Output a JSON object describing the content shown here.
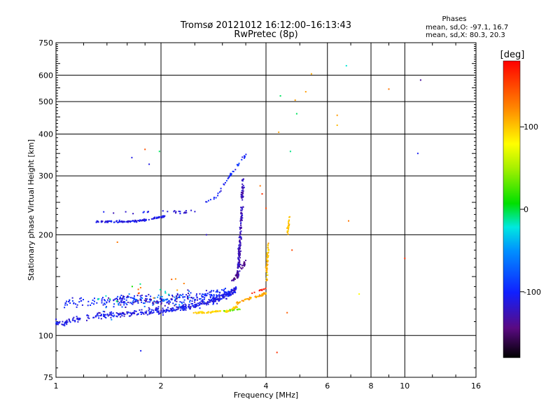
{
  "chart_data": {
    "type": "scatter",
    "title": "Tromsø 20121012 16:12:00–16:13:43",
    "subtitle": "RwPretec (8p)",
    "xlabel": "Frequency [MHz]",
    "ylabel": "Stationary phase Virtual Height [km]",
    "x_scale": "log",
    "y_scale": "log",
    "xlim": [
      1,
      16
    ],
    "ylim": [
      75,
      750
    ],
    "x_ticks": [
      1,
      2,
      4,
      6,
      8,
      10,
      16
    ],
    "x_tick_labels": [
      "1",
      "2",
      "4",
      "6",
      "8",
      "10",
      "16"
    ],
    "x_gridlines": [
      2,
      4,
      6,
      8,
      10
    ],
    "y_ticks": [
      75,
      100,
      200,
      300,
      400,
      500,
      600,
      750
    ],
    "y_tick_labels": [
      "75",
      "100",
      "200",
      "300",
      "400",
      "500",
      "600",
      "750"
    ],
    "y_gridlines": [
      100,
      200,
      300,
      400,
      500,
      600
    ],
    "grid": true,
    "colorbar": {
      "label": "[deg]",
      "range": [
        -180,
        180
      ],
      "ticks": [
        100,
        0,
        -100
      ],
      "tick_labels": [
        "100",
        "0",
        "-100"
      ]
    },
    "stats": {
      "heading": "Phases",
      "line1": "mean, sd,O: -97.1, 16.7",
      "line2": "mean, sd,X:  80.3, 20.3"
    },
    "traces": [
      {
        "x": [
          1.0,
          1.05,
          1.1,
          1.2,
          1.3,
          1.4,
          1.5,
          1.6,
          1.7,
          1.8,
          1.9,
          2.0,
          2.1,
          2.2,
          2.3,
          2.4,
          2.5,
          2.6,
          2.7,
          2.8,
          2.9,
          3.0,
          3.1,
          3.2,
          3.3
        ],
        "y": [
          110,
          109,
          111,
          113,
          114,
          115,
          115,
          116,
          117,
          117,
          118,
          118,
          119,
          120,
          121,
          122,
          123,
          124,
          126,
          127,
          128,
          130,
          132,
          135,
          138
        ],
        "phase": -110,
        "spread": [
          0.008,
          0.03
        ],
        "count": 420
      },
      {
        "x": [
          1.05,
          1.2,
          1.4,
          1.6,
          1.8,
          2.0,
          2.2,
          2.4,
          2.6,
          2.8,
          3.0,
          3.2
        ],
        "y": [
          125,
          126,
          126,
          128,
          128,
          127,
          128,
          130,
          131,
          132,
          133,
          136
        ],
        "phase": -100,
        "spread": [
          0.012,
          0.05
        ],
        "count": 260
      },
      {
        "x": [
          1.3,
          1.5,
          1.7,
          1.9,
          2.0,
          2.1,
          2.3,
          2.6
        ],
        "y": [
          117,
          122,
          130,
          125,
          133,
          127,
          126,
          128
        ],
        "phase": -60,
        "spread": [
          0.04,
          0.09
        ],
        "count": 40
      },
      {
        "x": [
          1.3,
          1.5,
          1.7,
          1.9,
          2.1,
          2.3,
          2.5
        ],
        "y": [
          117,
          125,
          128,
          124,
          126,
          132,
          131
        ],
        "phase": -135,
        "spread": [
          0.04,
          0.08
        ],
        "count": 50
      },
      {
        "x": [
          1.5,
          1.7,
          1.9,
          2.1,
          2.3
        ],
        "y": [
          131,
          135,
          127,
          140,
          142
        ],
        "phase": 130,
        "spread": [
          0.04,
          0.07
        ],
        "count": 10
      },
      {
        "x": [
          1.3,
          1.5,
          1.7,
          1.9,
          2.1
        ],
        "y": [
          132,
          128,
          140,
          138,
          135
        ],
        "phase": -10,
        "spread": [
          0.04,
          0.07
        ],
        "count": 12
      },
      {
        "x": [
          1.3,
          1.4,
          1.5,
          1.6,
          1.7,
          1.8,
          1.9,
          2.0,
          2.05
        ],
        "y": [
          219,
          219,
          219,
          219,
          220,
          221,
          224,
          226,
          227
        ],
        "phase": -110,
        "spread": [
          0.006,
          0.01
        ],
        "count": 120
      },
      {
        "x": [
          1.35,
          1.6,
          1.8,
          2.0,
          2.3,
          2.5,
          2.7
        ],
        "y": [
          234,
          233,
          233,
          237,
          233,
          236,
          246
        ],
        "phase": -115,
        "spread": [
          0.02,
          0.015
        ],
        "count": 25
      },
      {
        "x": [
          2.7,
          2.9,
          3.05,
          3.15,
          3.2,
          3.3,
          3.4,
          3.5
        ],
        "y": [
          250,
          262,
          285,
          300,
          305,
          320,
          335,
          345
        ],
        "phase": -100,
        "spread": [
          0.01,
          0.015
        ],
        "count": 45
      },
      {
        "x": [
          3.32,
          3.34,
          3.36,
          3.38,
          3.4,
          3.42,
          3.44
        ],
        "y": [
          150,
          165,
          180,
          200,
          230,
          260,
          290
        ],
        "phase": -125,
        "spread": [
          0.012,
          0.05
        ],
        "count": 180
      },
      {
        "x": [
          3.2,
          3.3,
          3.4,
          3.5
        ],
        "y": [
          145,
          150,
          160,
          165
        ],
        "phase": -140,
        "spread": [
          0.012,
          0.04
        ],
        "count": 40
      },
      {
        "x": [
          2.5,
          2.7,
          2.9,
          3.1,
          3.2,
          3.3
        ],
        "y": [
          117,
          117,
          118,
          118,
          120,
          122
        ],
        "phase": 95,
        "spread": [
          0.012,
          0.008
        ],
        "count": 90
      },
      {
        "x": [
          3.3,
          3.5,
          3.7,
          3.9,
          4.0
        ],
        "y": [
          125,
          128,
          130,
          132,
          134
        ],
        "phase": 110,
        "spread": [
          0.01,
          0.01
        ],
        "count": 60
      },
      {
        "x": [
          4.0,
          4.02,
          4.04,
          4.06
        ],
        "y": [
          140,
          155,
          170,
          185
        ],
        "phase": 105,
        "spread": [
          0.01,
          0.03
        ],
        "count": 55
      },
      {
        "x": [
          4.6,
          4.65,
          4.7
        ],
        "y": [
          200,
          215,
          235
        ],
        "phase": 105,
        "spread": [
          0.008,
          0.02
        ],
        "count": 28
      },
      {
        "x": [
          3.6,
          3.8,
          4.0
        ],
        "y": [
          134,
          136,
          138
        ],
        "phase": 170,
        "spread": [
          0.01,
          0.01
        ],
        "count": 10
      },
      {
        "x": [
          3.0,
          3.2,
          3.4
        ],
        "y": [
          118,
          119,
          120
        ],
        "phase": 35,
        "spread": [
          0.015,
          0.008
        ],
        "count": 12
      }
    ],
    "isolated_points": [
      {
        "x": 1.75,
        "y": 90,
        "phase": -105
      },
      {
        "x": 4.3,
        "y": 89,
        "phase": 160
      },
      {
        "x": 1.85,
        "y": 325,
        "phase": -110
      },
      {
        "x": 1.8,
        "y": 360,
        "phase": 145
      },
      {
        "x": 1.65,
        "y": 340,
        "phase": -110
      },
      {
        "x": 1.98,
        "y": 355,
        "phase": -5
      },
      {
        "x": 4.4,
        "y": 520,
        "phase": -5
      },
      {
        "x": 4.9,
        "y": 460,
        "phase": -5
      },
      {
        "x": 5.4,
        "y": 605,
        "phase": 110
      },
      {
        "x": 4.85,
        "y": 505,
        "phase": 115
      },
      {
        "x": 5.2,
        "y": 535,
        "phase": 115
      },
      {
        "x": 6.4,
        "y": 455,
        "phase": 115
      },
      {
        "x": 6.4,
        "y": 425,
        "phase": 105
      },
      {
        "x": 6.8,
        "y": 640,
        "phase": -20
      },
      {
        "x": 9.0,
        "y": 545,
        "phase": 130
      },
      {
        "x": 10.9,
        "y": 350,
        "phase": -105
      },
      {
        "x": 11.1,
        "y": 580,
        "phase": -135
      },
      {
        "x": 4.7,
        "y": 355,
        "phase": -10
      },
      {
        "x": 6.9,
        "y": 220,
        "phase": 130
      },
      {
        "x": 7.4,
        "y": 133,
        "phase": 80
      },
      {
        "x": 10.0,
        "y": 170,
        "phase": 160
      },
      {
        "x": 4.0,
        "y": 240,
        "phase": 150
      },
      {
        "x": 3.9,
        "y": 265,
        "phase": 160
      },
      {
        "x": 3.85,
        "y": 280,
        "phase": 130
      },
      {
        "x": 4.75,
        "y": 180,
        "phase": 150
      },
      {
        "x": 4.6,
        "y": 117,
        "phase": 140
      },
      {
        "x": 2.7,
        "y": 200,
        "phase": -120
      },
      {
        "x": 1.5,
        "y": 190,
        "phase": 130
      },
      {
        "x": 4.35,
        "y": 405,
        "phase": 115
      }
    ]
  }
}
